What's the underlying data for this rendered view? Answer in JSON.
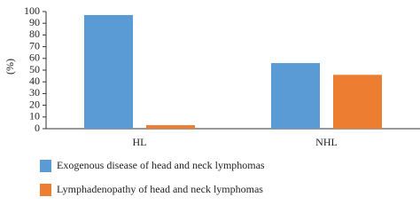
{
  "chart_data": {
    "type": "bar",
    "y_label": "(%)",
    "categories": [
      "HL",
      "NHL"
    ],
    "series": [
      {
        "name": "Exogenous disease of head and neck lymphomas",
        "color": "#5b9bd5",
        "values": [
          97,
          56
        ]
      },
      {
        "name": "Lymphadenopathy of head and neck lymphomas",
        "color": "#ed7d31",
        "values": [
          3,
          46
        ]
      }
    ],
    "ylim": [
      0,
      100
    ],
    "yticks": [
      0,
      10,
      20,
      30,
      40,
      50,
      60,
      70,
      80,
      90,
      100
    ],
    "legend": "bottom"
  }
}
